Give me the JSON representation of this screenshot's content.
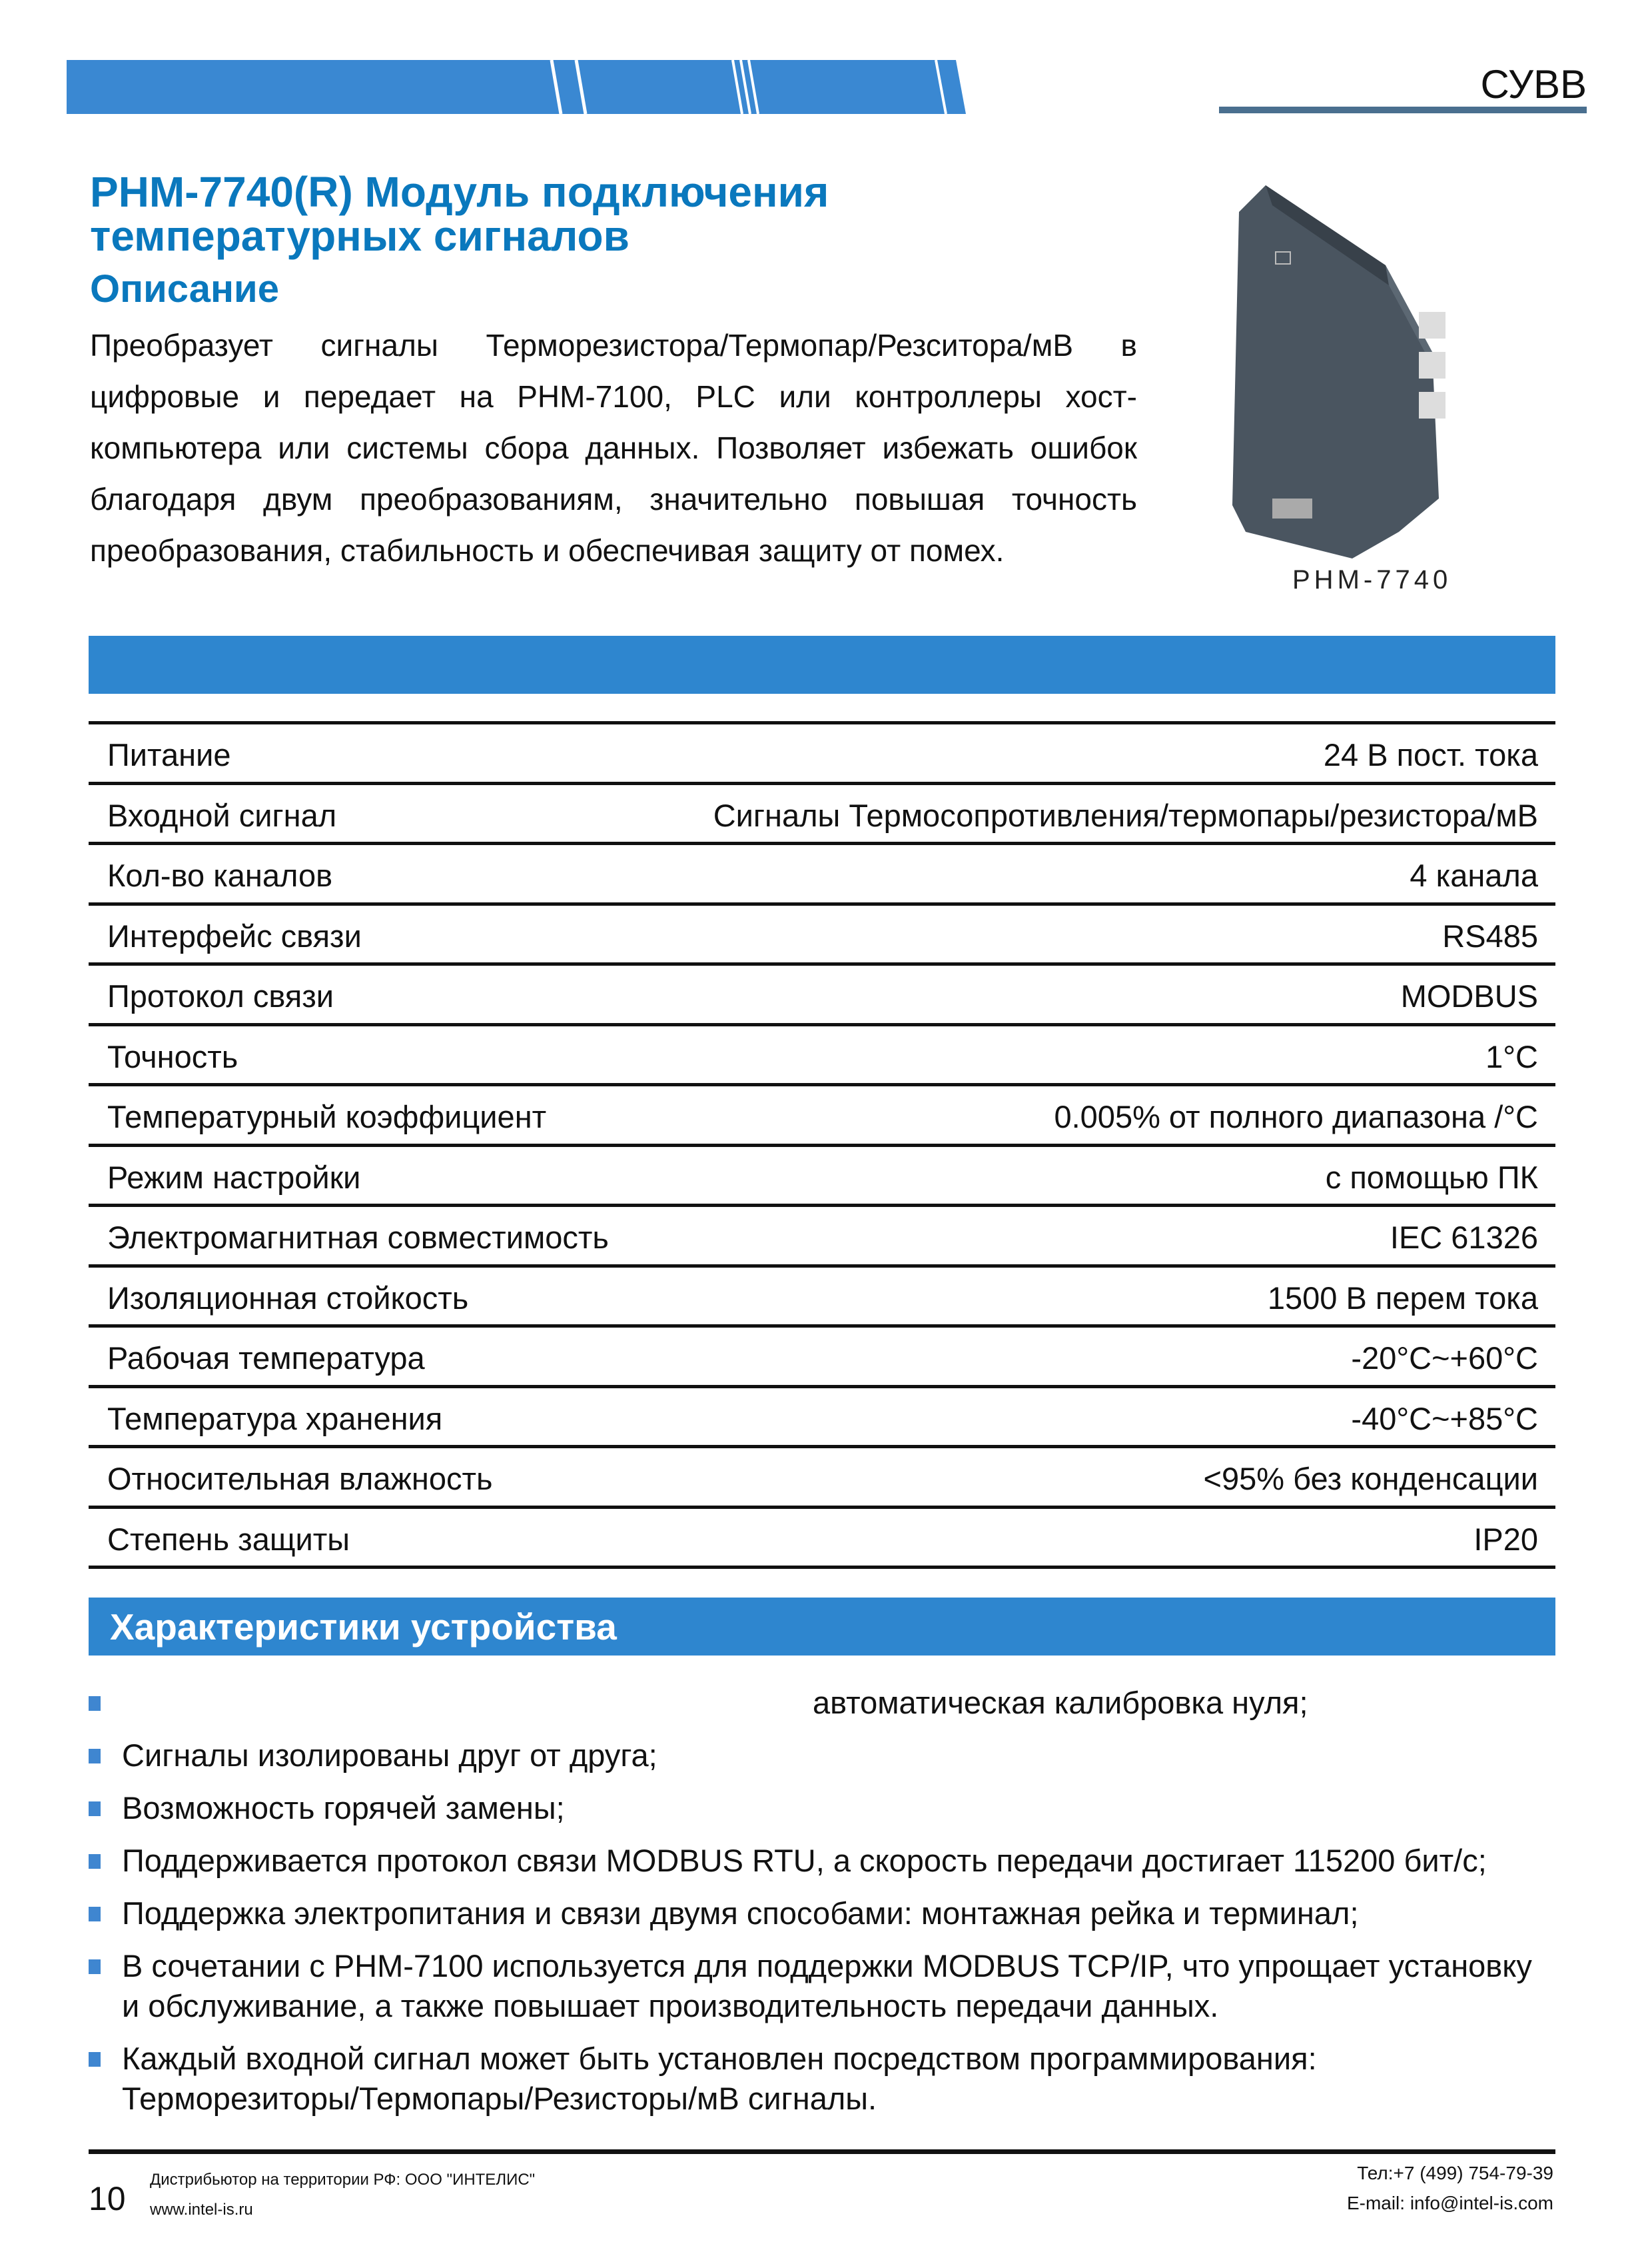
{
  "header": {
    "brand": "СУВВ",
    "accent_color": "#2e86cf"
  },
  "title": {
    "line1": "PHM-7740(R) Модуль подключения",
    "line2": "температурных сигналов"
  },
  "description": {
    "heading": "Описание",
    "text": "Преобразует сигналы Терморезистора/Термопар/Резситора/мВ в цифровые и передает на PHM-7100, PLC или контроллеры хост-компьютера или системы сбора данных. Позволяет избежать ошибок благодаря двум преобразованиям, значительно повышая точность преобразования, стабильность и обеспечивая защиту от помех."
  },
  "product": {
    "caption": "PHM-7740"
  },
  "specs": [
    {
      "k": "Питание",
      "v": "24 В пост. тока"
    },
    {
      "k": "Входной сигнал",
      "v": "Сигналы Термосопротивления/термопары/резистора/мВ"
    },
    {
      "k": "Кол-во каналов",
      "v": "4 канала"
    },
    {
      "k": "Интерфейс связи",
      "v": "RS485"
    },
    {
      "k": "Протокол связи",
      "v": "MODBUS"
    },
    {
      "k": "Точность",
      "v": "1°C"
    },
    {
      "k": "Температурный коэффициент",
      "v": "0.005% от полного диапазона /°C"
    },
    {
      "k": "Режим настройки",
      "v": "с помощью ПК"
    },
    {
      "k": "Электромагнитная совместимость",
      "v": "IEC 61326"
    },
    {
      "k": "Изоляционная стойкость",
      "v": "1500 В перем тока"
    },
    {
      "k": "Рабочая температура",
      "v": "-20°C~+60°C"
    },
    {
      "k": "Температура хранения",
      "v": "-40°C~+85°C"
    },
    {
      "k": "Относительная влажность",
      "v": "<95% без конденсации"
    },
    {
      "k": "Степень защиты",
      "v": "IP20"
    }
  ],
  "features": {
    "heading": "Характеристики устройства",
    "items": [
      "автоматическая калибровка нуля;",
      "Сигналы изолированы друг от друга;",
      "Возможность горячей замены;",
      "Поддерживается протокол связи MODBUS RTU, а скорость передачи достигает 115200 бит/с;",
      "Поддержка электропитания и связи двумя способами: монтажная рейка  и терминал;",
      "В сочетании с PHM-7100 используется для поддержки MODBUS TCP/IP, что упрощает установку и обслуживание, а также повышает производительность передачи данных.",
      "Каждый входной сигнал может быть установлен посредством программирования: Терморезиторы/Термопары/Резисторы/мВ сигналы."
    ]
  },
  "footer": {
    "page": "10",
    "distributor": "Дистрибьютор на территории РФ: ООО \"ИНТЕЛИС\"",
    "website": "www.intel-is.ru",
    "phone": "Тел:+7 (499) 754-79-39",
    "email": "E-mail: info@intel-is.com"
  }
}
